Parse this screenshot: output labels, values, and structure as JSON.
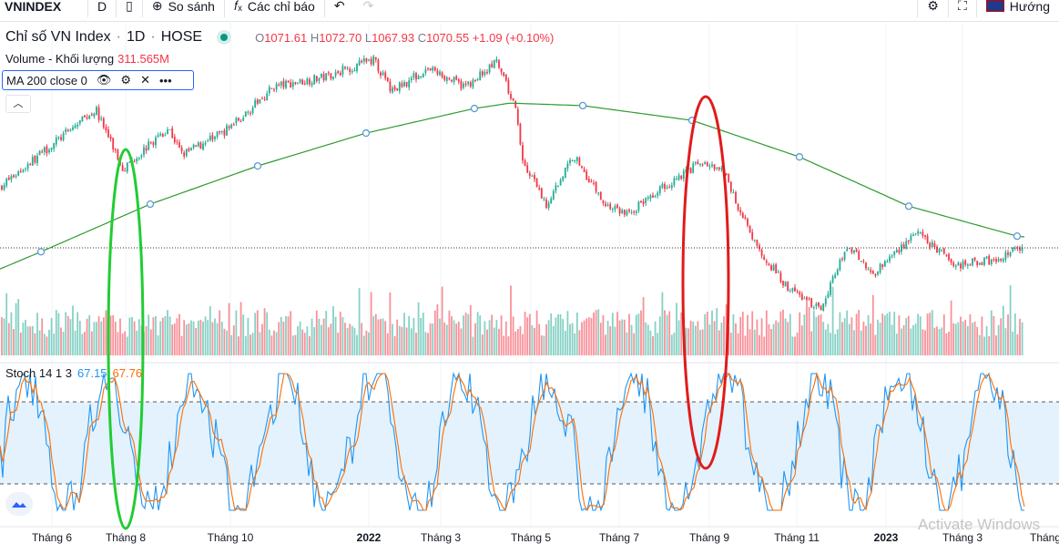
{
  "toolbar": {
    "symbol": "VNINDEX",
    "interval": "D",
    "compare": "So sánh",
    "indicators": "Các chỉ báo",
    "language": "Hướng"
  },
  "legend": {
    "title": "Chỉ số VN Index",
    "interval": "1D",
    "exchange": "HOSE",
    "o_label": "O",
    "o": "1071.61",
    "h_label": "H",
    "h": "1072.70",
    "l_label": "L",
    "l": "1067.93",
    "c_label": "C",
    "c": "1070.55",
    "change": "+1.09 (+0.10%)"
  },
  "volume": {
    "label": "Volume - Khối lượng",
    "value": "311.565M"
  },
  "ma": {
    "label": "MA 200 close 0"
  },
  "stoch": {
    "label": "Stoch 14 1 3",
    "k": "67.15",
    "d": "67.76",
    "upper": 80,
    "lower": 20
  },
  "xaxis": [
    "Tháng 6",
    "Tháng 8",
    "Tháng 10",
    "2022",
    "Tháng 3",
    "Tháng 5",
    "Tháng 7",
    "Tháng 9",
    "Tháng 11",
    "2023",
    "Tháng 3",
    "Tháng"
  ],
  "watermark": "Activate Windows",
  "colors": {
    "up": "#22ab94",
    "down": "#f23645",
    "ma": "#2e9b30",
    "k": "#2196f3",
    "d": "#ff6d00",
    "band": "#e3f2fd",
    "green_mark": "#22cc33",
    "red_mark": "#e01b1b"
  },
  "chart_data": {
    "type": "candlestick",
    "last_close": 1070.55,
    "price_anchors": [
      [
        0,
        1219
      ],
      [
        105,
        1408
      ],
      [
        135,
        1264
      ],
      [
        185,
        1363
      ],
      [
        200,
        1297
      ],
      [
        245,
        1352
      ],
      [
        270,
        1397
      ],
      [
        300,
        1463
      ],
      [
        355,
        1486
      ],
      [
        410,
        1530
      ],
      [
        430,
        1452
      ],
      [
        470,
        1508
      ],
      [
        510,
        1463
      ],
      [
        545,
        1523
      ],
      [
        565,
        1419
      ],
      [
        575,
        1275
      ],
      [
        600,
        1175
      ],
      [
        630,
        1297
      ],
      [
        665,
        1175
      ],
      [
        690,
        1153
      ],
      [
        720,
        1208
      ],
      [
        770,
        1279
      ],
      [
        795,
        1252
      ],
      [
        830,
        1075
      ],
      [
        865,
        975
      ],
      [
        900,
        920
      ],
      [
        930,
        1075
      ],
      [
        960,
        1008
      ],
      [
        1005,
        1108
      ],
      [
        1050,
        1030
      ],
      [
        1095,
        1041
      ],
      [
        1120,
        1075
      ],
      [
        1125,
        1070
      ]
    ],
    "ma200_anchors": [
      [
        0,
        1019
      ],
      [
        45,
        1061
      ],
      [
        165,
        1177
      ],
      [
        283,
        1270
      ],
      [
        402,
        1350
      ],
      [
        521,
        1410
      ],
      [
        560,
        1423
      ],
      [
        640,
        1417
      ],
      [
        760,
        1381
      ],
      [
        878,
        1292
      ],
      [
        998,
        1172
      ],
      [
        1117,
        1099
      ],
      [
        1125,
        1097
      ]
    ]
  }
}
